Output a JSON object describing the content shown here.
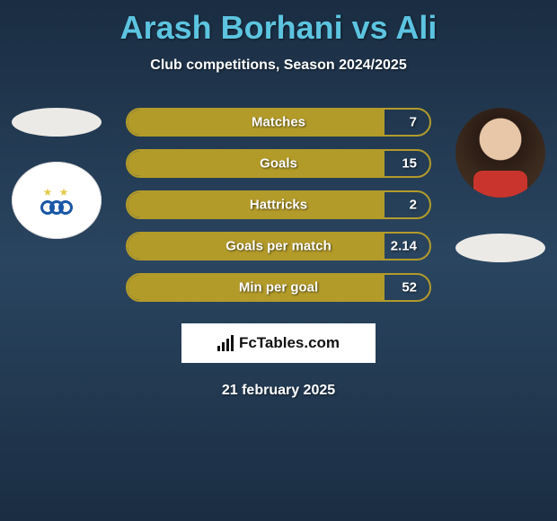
{
  "title": "Arash Borhani vs Ali",
  "subtitle": "Club competitions, Season 2024/2025",
  "date": "21 february 2025",
  "brand": {
    "text": "FcTables.com"
  },
  "colors": {
    "title": "#5cc4e0",
    "bar_border": "#b39b2a",
    "bar_fill": "#b39b2a",
    "text": "#ffffff",
    "background_gradient": [
      "#1a2d42",
      "#2a4560",
      "#1a2d42"
    ]
  },
  "bars": [
    {
      "label": "Matches",
      "value": "7",
      "fill_pct": 85
    },
    {
      "label": "Goals",
      "value": "15",
      "fill_pct": 85
    },
    {
      "label": "Hattricks",
      "value": "2",
      "fill_pct": 85
    },
    {
      "label": "Goals per match",
      "value": "2.14",
      "fill_pct": 85
    },
    {
      "label": "Min per goal",
      "value": "52",
      "fill_pct": 85
    }
  ]
}
